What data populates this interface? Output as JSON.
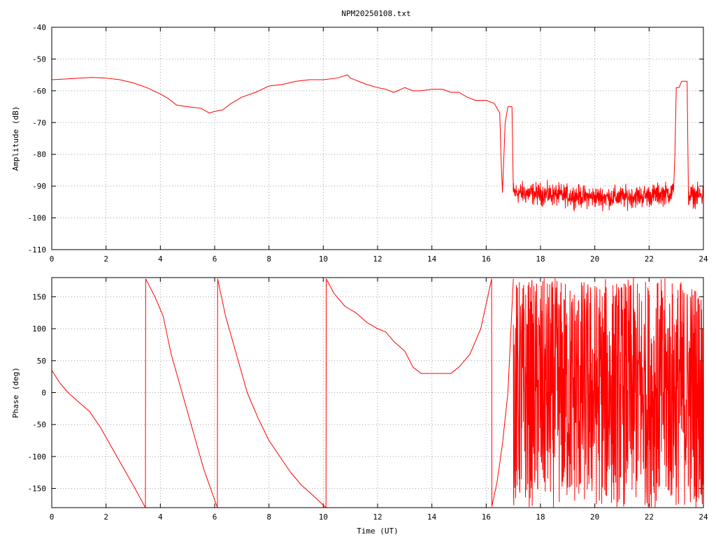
{
  "title": "NPM20250108.txt",
  "colors": {
    "series": "#ff0000",
    "grid": "#a0a0a0",
    "axis": "#000000"
  },
  "chart_data": [
    {
      "type": "line",
      "ylabel": "Amplitude (dB)",
      "xlabel": "",
      "xlim": [
        0,
        24
      ],
      "ylim": [
        -110,
        -40
      ],
      "xticks": [
        "0",
        "2",
        "4",
        "6",
        "8",
        "10",
        "12",
        "14",
        "16",
        "18",
        "20",
        "22",
        "24"
      ],
      "yticks": [
        "-40",
        "-50",
        "-60",
        "-70",
        "-80",
        "-90",
        "-100",
        "-110"
      ],
      "grid": true,
      "series": [
        {
          "color": "#ff0000",
          "x": [
            0,
            0.5,
            1,
            1.5,
            2,
            2.5,
            3,
            3.5,
            4,
            4.3,
            4.6,
            5,
            5.5,
            5.8,
            6,
            6.3,
            6.6,
            7,
            7.5,
            8,
            8.5,
            9,
            9.5,
            10,
            10.5,
            10.9,
            11,
            11.3,
            11.6,
            12,
            12.3,
            12.6,
            13,
            13.3,
            13.6,
            14,
            14.4,
            14.7,
            15,
            15.3,
            15.6,
            16,
            16.3,
            16.5,
            16.55,
            16.6,
            16.7,
            16.8,
            16.9,
            16.95,
            17
          ],
          "y": [
            -56.5,
            -56.3,
            -56,
            -55.8,
            -56,
            -56.5,
            -57.5,
            -59,
            -61,
            -62.5,
            -64.5,
            -65,
            -65.5,
            -67,
            -66.5,
            -66,
            -64,
            -62,
            -60.5,
            -58.5,
            -58,
            -57,
            -56.5,
            -56.5,
            -56,
            -55,
            -56,
            -57,
            -58,
            -59,
            -59.5,
            -60.5,
            -59,
            -60,
            -60,
            -59.5,
            -59.5,
            -60.5,
            -60.5,
            -62,
            -63,
            -63,
            -64,
            -67,
            -82,
            -92,
            -70,
            -65,
            -65,
            -65,
            -92
          ]
        },
        {
          "color": "#ff0000",
          "noise": true,
          "x": [
            17,
            18,
            19,
            20,
            21,
            22,
            22.9
          ],
          "y": [
            -92,
            -92.5,
            -93,
            -93.5,
            -93.5,
            -93,
            -92
          ],
          "spread": 5
        },
        {
          "color": "#ff0000",
          "x": [
            22.9,
            22.95,
            23,
            23.1,
            23.2,
            23.3,
            23.4,
            23.45
          ],
          "y": [
            -92,
            -80,
            -59,
            -59,
            -57,
            -57,
            -57,
            -94
          ]
        },
        {
          "color": "#ff0000",
          "noise": true,
          "x": [
            23.45,
            24
          ],
          "y": [
            -93,
            -93
          ],
          "spread": 5
        }
      ]
    },
    {
      "type": "line",
      "ylabel": "Phase (deg)",
      "xlabel": "Time (UT)",
      "xlim": [
        0,
        24
      ],
      "ylim": [
        -180,
        180
      ],
      "xticks": [
        "0",
        "2",
        "4",
        "6",
        "8",
        "10",
        "12",
        "14",
        "16",
        "18",
        "20",
        "22",
        "24"
      ],
      "yticks": [
        "150",
        "100",
        "50",
        "0",
        "-50",
        "-100",
        "-150"
      ],
      "grid": true,
      "series": [
        {
          "color": "#ff0000",
          "x": [
            0,
            0.3,
            0.6,
            1,
            1.4,
            1.8,
            2.2,
            2.6,
            3,
            3.45,
            3.46,
            3.8,
            4.1,
            4.4,
            4.8,
            5.2,
            5.6,
            6.1,
            6.11,
            6.4,
            6.8,
            7.2,
            7.6,
            8,
            8.4,
            8.8,
            9.2,
            9.6,
            10.1,
            10.11,
            10.4,
            10.8,
            11.2,
            11.6,
            12,
            12.3,
            12.6,
            13,
            13.3,
            13.6,
            14,
            14.4,
            14.7,
            15,
            15.4,
            15.8,
            16.2,
            16.21,
            16.4,
            16.6,
            16.8,
            17
          ],
          "y": [
            35,
            15,
            0,
            -15,
            -30,
            -55,
            -85,
            -115,
            -145,
            -180,
            178,
            150,
            120,
            60,
            0,
            -60,
            -120,
            -180,
            178,
            120,
            60,
            0,
            -40,
            -75,
            -100,
            -125,
            -145,
            -160,
            -180,
            178,
            155,
            135,
            125,
            110,
            100,
            95,
            80,
            65,
            40,
            30,
            30,
            30,
            30,
            40,
            60,
            100,
            178,
            -178,
            -140,
            -80,
            0,
            178
          ]
        },
        {
          "color": "#ff0000",
          "noise": true,
          "x": [
            17,
            18,
            19,
            20,
            21,
            22,
            23,
            24
          ],
          "y": [
            0,
            20,
            10,
            30,
            30,
            40,
            0,
            0
          ],
          "spread": 180
        }
      ]
    }
  ]
}
